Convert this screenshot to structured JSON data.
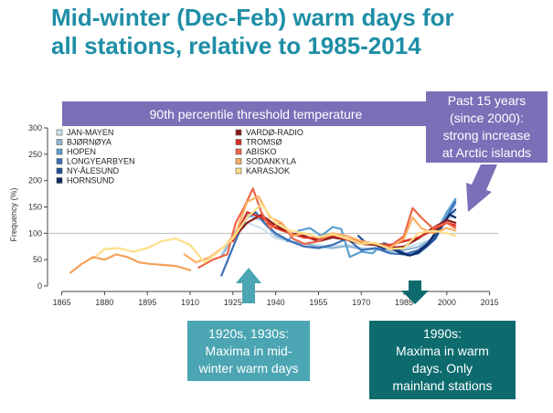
{
  "title_line1": "Mid-winter (Dec-Feb) warm days for",
  "title_line2": "all stations, relative to 1985-2014",
  "threshold_label": "90th percentile threshold temperature",
  "recent_note": {
    "line1": "Past 15 years",
    "line2": "(since 2000):",
    "line3": "strong increase",
    "line4": "at Arctic islands"
  },
  "callout_1920s": {
    "line1": "1920s, 1930s:",
    "line2": "Maxima in mid-",
    "line3": "winter warm days",
    "color": "#4ba5b2"
  },
  "callout_1990s": {
    "line1": "1990s:",
    "line2": "Maxima in warm",
    "line3": "days. Only",
    "line4": "mainland stations",
    "color": "#0d6b6e"
  },
  "accent_colors": {
    "title": "#1e8ea6",
    "banner": "#7b6fb8"
  },
  "chart_data": {
    "type": "line",
    "ylabel": "Frequency (%)",
    "xlim": [
      1860,
      2018
    ],
    "ylim": [
      0,
      300
    ],
    "x_ticks": [
      1865,
      1880,
      1895,
      1910,
      1925,
      1940,
      1955,
      1970,
      1985,
      2000,
      2015
    ],
    "y_ticks": [
      0,
      50,
      100,
      150,
      200,
      250,
      300
    ],
    "reference_line": 100,
    "legend_placement": "top-left",
    "series": [
      {
        "name": "JAN-MAYEN",
        "color": "#cfe3ee",
        "x": [
          1921,
          1925,
          1930,
          1935,
          1940,
          1945,
          1950,
          1955,
          1960,
          1965,
          1970,
          1975,
          1980,
          1985,
          1990,
          1995,
          2000,
          2003
        ],
        "y": [
          60,
          95,
          120,
          110,
          90,
          85,
          80,
          78,
          75,
          78,
          72,
          70,
          68,
          72,
          80,
          90,
          120,
          140
        ]
      },
      {
        "name": "BJØRNØYA",
        "color": "#8fb8d8",
        "x": [
          1921,
          1925,
          1930,
          1935,
          1940,
          1945,
          1950,
          1955,
          1960,
          1965,
          1970,
          1975,
          1980,
          1985,
          1990,
          1995,
          2000,
          2003
        ],
        "y": [
          55,
          95,
          135,
          125,
          95,
          85,
          80,
          75,
          72,
          76,
          70,
          70,
          66,
          68,
          74,
          90,
          135,
          155
        ]
      },
      {
        "name": "HOPEN",
        "color": "#5a9fd0",
        "x": [
          1944,
          1948,
          1952,
          1956,
          1960,
          1963,
          1966,
          1970,
          1974,
          1978,
          1982,
          1986,
          1990,
          1994,
          1998,
          2000,
          2003
        ],
        "y": [
          85,
          105,
          110,
          95,
          112,
          108,
          55,
          65,
          62,
          82,
          72,
          58,
          62,
          85,
          120,
          140,
          165
        ]
      },
      {
        "name": "LONGYEARBYEN",
        "color": "#3b6fb6",
        "x": [
          1921,
          1924,
          1927,
          1930,
          1933,
          1936,
          1940,
          1945,
          1950,
          1955,
          1960,
          1965,
          1970,
          1975,
          1980,
          1985,
          1990,
          1995,
          2000,
          2003
        ],
        "y": [
          20,
          60,
          100,
          130,
          140,
          120,
          100,
          85,
          75,
          72,
          78,
          90,
          68,
          72,
          62,
          60,
          68,
          88,
          130,
          160
        ]
      },
      {
        "name": "NY-ÅLESUND",
        "color": "#1f4f9a",
        "x": [
          1969,
          1972,
          1975,
          1978,
          1981,
          1984,
          1987,
          1990,
          1993,
          1996,
          1999,
          2001,
          2003
        ],
        "y": [
          95,
          80,
          78,
          70,
          75,
          65,
          58,
          62,
          75,
          90,
          120,
          135,
          145
        ]
      },
      {
        "name": "HORNSUND",
        "color": "#0e2a63",
        "x": [
          1978,
          1981,
          1984,
          1987,
          1990,
          1993,
          1996,
          1999,
          2001,
          2003
        ],
        "y": [
          80,
          70,
          62,
          58,
          65,
          78,
          100,
          120,
          135,
          130
        ]
      },
      {
        "name": "VARDØ-RADIO",
        "color": "#8b1a1a",
        "x": [
          1925,
          1930,
          1935,
          1940,
          1945,
          1950,
          1955,
          1960,
          1965,
          1970,
          1975,
          1980,
          1985,
          1990,
          1995,
          2000,
          2003
        ],
        "y": [
          90,
          120,
          135,
          115,
          100,
          95,
          85,
          92,
          88,
          80,
          78,
          72,
          75,
          90,
          110,
          125,
          120
        ]
      },
      {
        "name": "TROMSØ",
        "color": "#d7301f",
        "x": [
          1925,
          1930,
          1935,
          1940,
          1945,
          1950,
          1955,
          1960,
          1965,
          1970,
          1975,
          1980,
          1985,
          1990,
          1995,
          2000,
          2003
        ],
        "y": [
          85,
          140,
          130,
          110,
          100,
          92,
          90,
          95,
          90,
          82,
          80,
          78,
          85,
          92,
          105,
          120,
          115
        ]
      },
      {
        "name": "ABISKO",
        "color": "#ef6548",
        "x": [
          1913,
          1918,
          1923,
          1926,
          1929,
          1932,
          1935,
          1938,
          1942,
          1946,
          1950,
          1955,
          1960,
          1965,
          1970,
          1975,
          1980,
          1985,
          1988,
          1991,
          1995,
          2000,
          2003
        ],
        "y": [
          35,
          50,
          60,
          120,
          150,
          185,
          140,
          110,
          120,
          90,
          80,
          85,
          100,
          88,
          85,
          80,
          75,
          95,
          148,
          130,
          110,
          120,
          110
        ]
      },
      {
        "name": "SODANKYLA",
        "color": "#fdae61",
        "x": [
          1908,
          1912,
          1917,
          1922,
          1926,
          1930,
          1934,
          1938,
          1942,
          1946,
          1950,
          1955,
          1960,
          1965,
          1970,
          1975,
          1980,
          1985,
          1988,
          1991,
          1995,
          2000,
          2003
        ],
        "y": [
          60,
          45,
          55,
          75,
          100,
          160,
          170,
          130,
          120,
          95,
          100,
          92,
          100,
          95,
          85,
          80,
          72,
          90,
          130,
          110,
          100,
          110,
          105
        ]
      },
      {
        "name": "KARASJOK",
        "color": "#fee08b",
        "x": [
          1876,
          1880,
          1885,
          1890,
          1895,
          1900,
          1905,
          1910,
          1915,
          1920,
          1925,
          1930,
          1935,
          1940,
          1945,
          1950,
          1955,
          1960,
          1965,
          1970,
          1975,
          1980,
          1985,
          1990,
          1995,
          2000,
          2003
        ],
        "y": [
          52,
          70,
          72,
          65,
          72,
          85,
          90,
          78,
          45,
          65,
          90,
          130,
          155,
          120,
          105,
          100,
          92,
          98,
          90,
          80,
          82,
          70,
          72,
          100,
          105,
          100,
          95
        ]
      },
      {
        "name": "",
        "color": "#f4a05a",
        "x": [
          1868,
          1872,
          1876,
          1880,
          1884,
          1888,
          1892,
          1896,
          1900,
          1905,
          1910
        ],
        "y": [
          25,
          42,
          55,
          50,
          60,
          55,
          45,
          42,
          40,
          38,
          30
        ]
      }
    ]
  }
}
